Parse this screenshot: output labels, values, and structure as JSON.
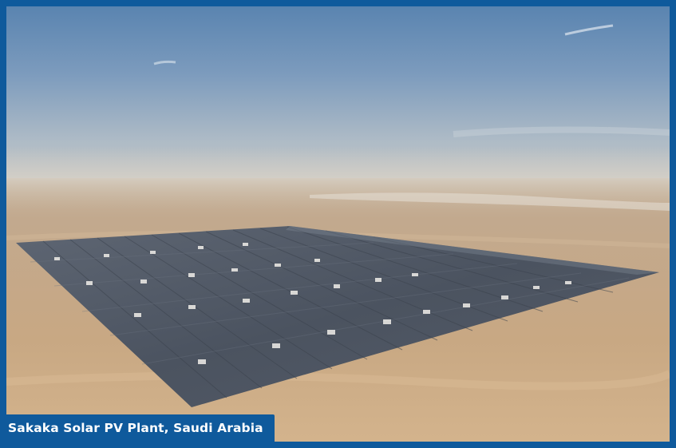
{
  "caption": {
    "text": "Sakaka Solar PV Plant, Saudi Arabia"
  },
  "colors": {
    "frame": "#0f5a9c",
    "sky_top": "#5f88b3",
    "sky_haze": "#c6c9c8",
    "desert": "#c8aa88",
    "panels": "#4a5563"
  },
  "photo": {
    "subject": "aerial-view-solar-farm-desert"
  }
}
